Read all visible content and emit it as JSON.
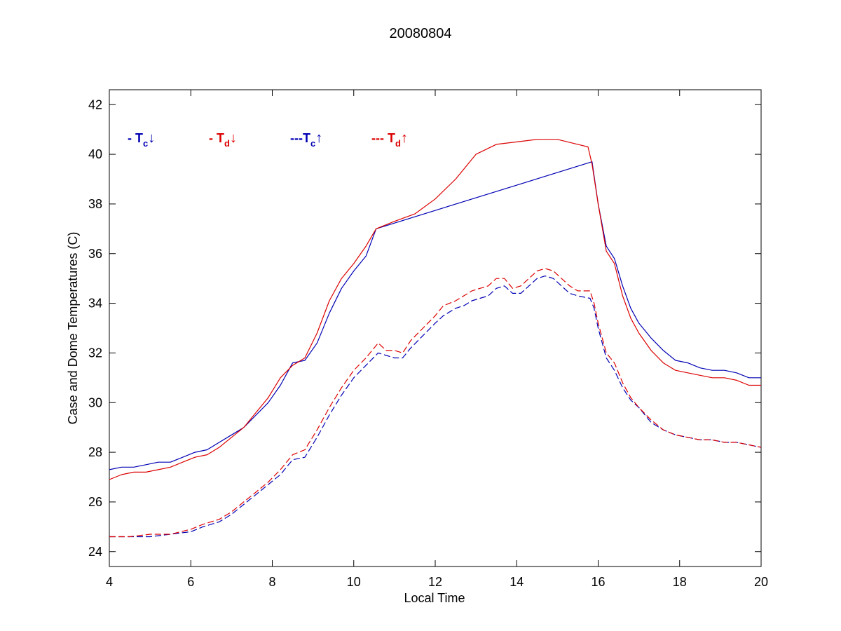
{
  "chart_data": {
    "type": "line",
    "title": "20080804",
    "xlabel": "Local Time",
    "ylabel": "Case and Dome Temperatures (C)",
    "xlim": [
      4,
      20
    ],
    "ylim": [
      23.4,
      42.6
    ],
    "xticks": [
      4,
      6,
      8,
      10,
      12,
      14,
      16,
      18,
      20
    ],
    "yticks": [
      24,
      26,
      28,
      30,
      32,
      34,
      36,
      38,
      40,
      42
    ],
    "grid": false,
    "legend_position": "top-left",
    "series": [
      {
        "name": "- T_c↓",
        "legend_prefix": "- ",
        "legend_symbol": "T",
        "legend_sub": "c",
        "legend_arrow": "↓",
        "color": "#0000b4",
        "dash": "solid",
        "x": [
          4.0,
          4.3,
          4.6,
          4.9,
          5.2,
          5.5,
          5.8,
          6.1,
          6.4,
          6.7,
          7.0,
          7.3,
          7.6,
          7.9,
          8.2,
          8.5,
          8.8,
          9.1,
          9.4,
          9.7,
          10.0,
          10.3,
          10.55,
          15.85,
          16.0,
          16.2,
          16.4,
          16.6,
          16.8,
          17.0,
          17.3,
          17.6,
          17.9,
          18.2,
          18.5,
          18.8,
          19.1,
          19.4,
          19.7,
          20.0
        ],
        "y": [
          27.3,
          27.4,
          27.4,
          27.5,
          27.6,
          27.6,
          27.8,
          28.0,
          28.1,
          28.4,
          28.7,
          29.0,
          29.5,
          30.0,
          30.7,
          31.6,
          31.7,
          32.4,
          33.6,
          34.6,
          35.3,
          35.9,
          37.0,
          39.7,
          38.0,
          36.3,
          35.8,
          34.7,
          33.8,
          33.2,
          32.6,
          32.1,
          31.7,
          31.6,
          31.4,
          31.3,
          31.3,
          31.2,
          31.0,
          31.0
        ]
      },
      {
        "name": "- T_d↓",
        "legend_prefix": "- ",
        "legend_symbol": "T",
        "legend_sub": "d",
        "legend_arrow": "↓",
        "color": "#dc0000",
        "dash": "solid",
        "x": [
          4.0,
          4.3,
          4.6,
          4.9,
          5.2,
          5.5,
          5.8,
          6.1,
          6.4,
          6.7,
          7.0,
          7.3,
          7.6,
          7.9,
          8.2,
          8.5,
          8.8,
          9.1,
          9.4,
          9.7,
          10.0,
          10.3,
          10.55,
          11.0,
          11.5,
          12.0,
          12.5,
          13.0,
          13.5,
          14.0,
          14.5,
          15.0,
          15.5,
          15.75,
          15.85,
          16.0,
          16.2,
          16.4,
          16.6,
          16.8,
          17.0,
          17.3,
          17.6,
          17.9,
          18.2,
          18.5,
          18.8,
          19.1,
          19.4,
          19.7,
          20.0
        ],
        "y": [
          26.9,
          27.1,
          27.2,
          27.2,
          27.3,
          27.4,
          27.6,
          27.8,
          27.9,
          28.2,
          28.6,
          29.0,
          29.6,
          30.2,
          31.0,
          31.5,
          31.8,
          32.8,
          34.1,
          35.0,
          35.6,
          36.3,
          37.0,
          37.3,
          37.6,
          38.2,
          39.0,
          40.0,
          40.4,
          40.5,
          40.6,
          40.6,
          40.4,
          40.3,
          39.6,
          38.0,
          36.1,
          35.6,
          34.3,
          33.4,
          32.8,
          32.1,
          31.6,
          31.3,
          31.2,
          31.1,
          31.0,
          31.0,
          30.9,
          30.7,
          30.7
        ]
      },
      {
        "name": "---T_c↑",
        "legend_prefix": "---",
        "legend_symbol": "T",
        "legend_sub": "c",
        "legend_arrow": "↑",
        "color": "#0000b4",
        "dash": "dashed",
        "x": [
          4.0,
          4.5,
          5.0,
          5.5,
          6.0,
          6.3,
          6.7,
          7.0,
          7.3,
          7.6,
          7.9,
          8.2,
          8.5,
          8.8,
          9.1,
          9.4,
          9.7,
          10.0,
          10.3,
          10.6,
          10.8,
          11.0,
          11.2,
          11.4,
          11.7,
          12.0,
          12.2,
          12.5,
          12.7,
          12.9,
          13.1,
          13.3,
          13.5,
          13.7,
          13.9,
          14.1,
          14.3,
          14.5,
          14.7,
          14.9,
          15.1,
          15.3,
          15.5,
          15.8,
          15.9,
          16.0,
          16.2,
          16.4,
          16.6,
          16.8,
          17.0,
          17.3,
          17.6,
          17.9,
          18.2,
          18.5,
          18.8,
          19.1,
          19.4,
          19.7,
          20.0
        ],
        "y": [
          24.6,
          24.6,
          24.6,
          24.7,
          24.8,
          25.0,
          25.2,
          25.5,
          25.9,
          26.3,
          26.7,
          27.1,
          27.7,
          27.8,
          28.6,
          29.5,
          30.3,
          31.0,
          31.5,
          32.0,
          31.9,
          31.8,
          31.8,
          32.2,
          32.7,
          33.2,
          33.5,
          33.8,
          33.9,
          34.1,
          34.2,
          34.3,
          34.6,
          34.7,
          34.4,
          34.4,
          34.7,
          35.0,
          35.1,
          35.0,
          34.7,
          34.4,
          34.3,
          34.2,
          33.8,
          33.0,
          31.8,
          31.3,
          30.6,
          30.1,
          29.8,
          29.2,
          28.9,
          28.7,
          28.6,
          28.5,
          28.5,
          28.4,
          28.4,
          28.3,
          28.2
        ]
      },
      {
        "name": "--- T_d↑",
        "legend_prefix": "--- ",
        "legend_symbol": "T",
        "legend_sub": "d",
        "legend_arrow": "↑",
        "color": "#dc0000",
        "dash": "dashed",
        "x": [
          4.0,
          4.5,
          5.0,
          5.5,
          6.0,
          6.3,
          6.7,
          7.0,
          7.3,
          7.6,
          7.9,
          8.2,
          8.5,
          8.8,
          9.1,
          9.4,
          9.7,
          10.0,
          10.3,
          10.6,
          10.8,
          11.0,
          11.2,
          11.4,
          11.7,
          12.0,
          12.2,
          12.5,
          12.7,
          12.9,
          13.1,
          13.3,
          13.5,
          13.7,
          13.9,
          14.1,
          14.3,
          14.5,
          14.7,
          14.9,
          15.1,
          15.3,
          15.5,
          15.8,
          15.9,
          16.0,
          16.2,
          16.4,
          16.6,
          16.8,
          17.0,
          17.3,
          17.6,
          17.9,
          18.2,
          18.5,
          18.8,
          19.1,
          19.4,
          19.7,
          20.0
        ],
        "y": [
          24.6,
          24.6,
          24.7,
          24.7,
          24.9,
          25.1,
          25.3,
          25.6,
          26.0,
          26.4,
          26.8,
          27.3,
          27.9,
          28.1,
          28.9,
          29.8,
          30.6,
          31.3,
          31.8,
          32.4,
          32.1,
          32.1,
          32.0,
          32.5,
          33.0,
          33.5,
          33.9,
          34.1,
          34.3,
          34.5,
          34.6,
          34.7,
          35.0,
          35.0,
          34.6,
          34.7,
          35.0,
          35.3,
          35.4,
          35.3,
          35.0,
          34.7,
          34.5,
          34.5,
          34.0,
          33.2,
          32.0,
          31.6,
          30.8,
          30.2,
          29.8,
          29.3,
          28.9,
          28.7,
          28.6,
          28.5,
          28.5,
          28.4,
          28.4,
          28.3,
          28.2
        ]
      }
    ]
  }
}
